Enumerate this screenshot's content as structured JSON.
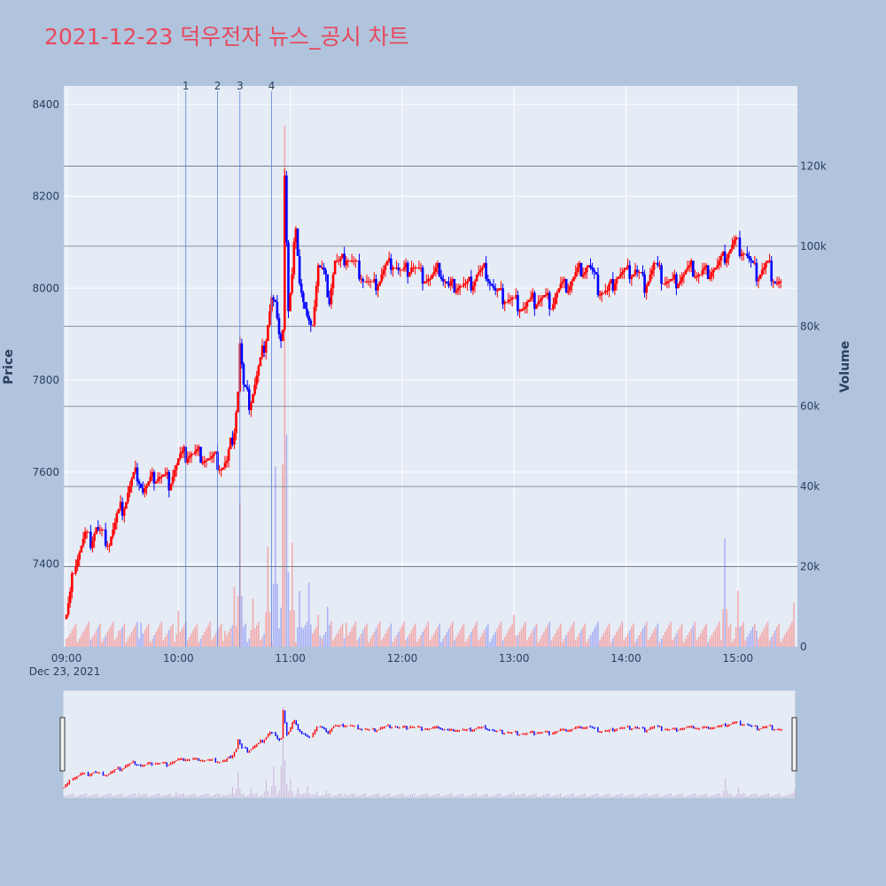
{
  "title": "2021-12-23 덕우전자 뉴스_공시 차트",
  "colors": {
    "up": "#ff0000",
    "down": "#0000ff",
    "plot_bg": "#e5ecf6",
    "page_bg": "#b0c4de",
    "title": "#e8495c"
  },
  "chart_data": {
    "type": "candlestick",
    "xlabel": "",
    "ylabel": "Price",
    "y2label": "Volume",
    "x_start": "09:00",
    "x_end": "15:30",
    "date_label": "Dec 23, 2021",
    "x_ticks": [
      "09:00",
      "10:00",
      "11:00",
      "12:00",
      "13:00",
      "14:00",
      "15:00"
    ],
    "ylim": [
      7220,
      8440
    ],
    "y_ticks": [
      7400,
      7600,
      7800,
      8000,
      8200,
      8400
    ],
    "y2lim": [
      0,
      140000
    ],
    "y2_ticks": [
      0,
      20000,
      40000,
      60000,
      80000,
      100000,
      120000
    ],
    "y2_tick_labels": [
      "0",
      "20k",
      "40k",
      "60k",
      "80k",
      "100k",
      "120k"
    ],
    "annotations": [
      {
        "label": "1",
        "time": "10:04"
      },
      {
        "label": "2",
        "time": "10:21"
      },
      {
        "label": "3",
        "time": "10:33"
      },
      {
        "label": "4",
        "time": "10:50"
      }
    ],
    "price_path": [
      [
        "09:00",
        7290
      ],
      [
        "09:02",
        7330
      ],
      [
        "09:04",
        7400
      ],
      [
        "09:07",
        7430
      ],
      [
        "09:10",
        7460
      ],
      [
        "09:13",
        7450
      ],
      [
        "09:16",
        7480
      ],
      [
        "09:20",
        7460
      ],
      [
        "09:23",
        7450
      ],
      [
        "09:27",
        7500
      ],
      [
        "09:31",
        7530
      ],
      [
        "09:35",
        7580
      ],
      [
        "09:38",
        7600
      ],
      [
        "09:41",
        7560
      ],
      [
        "09:44",
        7570
      ],
      [
        "09:47",
        7590
      ],
      [
        "09:51",
        7590
      ],
      [
        "09:55",
        7580
      ],
      [
        "09:58",
        7610
      ],
      [
        "10:01",
        7630
      ],
      [
        "10:05",
        7640
      ],
      [
        "10:10",
        7640
      ],
      [
        "10:15",
        7630
      ],
      [
        "10:20",
        7625
      ],
      [
        "10:23",
        7610
      ],
      [
        "10:26",
        7620
      ],
      [
        "10:28",
        7660
      ],
      [
        "10:30",
        7700
      ],
      [
        "10:32",
        7780
      ],
      [
        "10:33",
        7880
      ],
      [
        "10:35",
        7780
      ],
      [
        "10:38",
        7750
      ],
      [
        "10:41",
        7790
      ],
      [
        "10:44",
        7840
      ],
      [
        "10:47",
        7900
      ],
      [
        "10:50",
        7980
      ],
      [
        "10:52",
        7960
      ],
      [
        "10:54",
        7880
      ],
      [
        "10:56",
        7920
      ],
      [
        "10:57",
        8250
      ],
      [
        "10:58",
        8100
      ],
      [
        "10:59",
        7950
      ],
      [
        "11:01",
        8020
      ],
      [
        "11:03",
        8150
      ],
      [
        "11:05",
        8020
      ],
      [
        "11:07",
        7970
      ],
      [
        "11:09",
        7930
      ],
      [
        "11:11",
        7900
      ],
      [
        "11:13",
        7970
      ],
      [
        "11:15",
        8050
      ],
      [
        "11:18",
        8030
      ],
      [
        "11:21",
        7980
      ],
      [
        "11:24",
        8060
      ],
      [
        "11:27",
        8050
      ],
      [
        "11:30",
        8070
      ],
      [
        "11:35",
        8050
      ],
      [
        "11:40",
        8020
      ],
      [
        "11:45",
        8000
      ],
      [
        "11:50",
        8040
      ],
      [
        "11:55",
        8060
      ],
      [
        "12:00",
        8030
      ],
      [
        "12:05",
        8050
      ],
      [
        "12:10",
        8030
      ],
      [
        "12:15",
        8020
      ],
      [
        "12:20",
        8040
      ],
      [
        "12:25",
        8000
      ],
      [
        "12:30",
        8010
      ],
      [
        "12:35",
        8000
      ],
      [
        "12:40",
        8030
      ],
      [
        "12:45",
        8040
      ],
      [
        "12:50",
        7990
      ],
      [
        "12:55",
        7980
      ],
      [
        "13:00",
        7970
      ],
      [
        "13:05",
        7960
      ],
      [
        "13:10",
        7970
      ],
      [
        "13:15",
        7980
      ],
      [
        "13:20",
        7970
      ],
      [
        "13:25",
        8000
      ],
      [
        "13:30",
        8010
      ],
      [
        "13:35",
        8040
      ],
      [
        "13:40",
        8050
      ],
      [
        "13:45",
        8000
      ],
      [
        "13:50",
        7990
      ],
      [
        "13:55",
        8030
      ],
      [
        "14:00",
        8030
      ],
      [
        "14:05",
        8040
      ],
      [
        "14:10",
        8010
      ],
      [
        "14:15",
        8050
      ],
      [
        "14:20",
        8020
      ],
      [
        "14:25",
        8010
      ],
      [
        "14:30",
        8030
      ],
      [
        "14:35",
        8040
      ],
      [
        "14:40",
        8030
      ],
      [
        "14:45",
        8040
      ],
      [
        "14:50",
        8050
      ],
      [
        "14:55",
        8080
      ],
      [
        "14:58",
        8100
      ],
      [
        "15:01",
        8090
      ],
      [
        "15:04",
        8080
      ],
      [
        "15:07",
        8050
      ],
      [
        "15:10",
        8030
      ],
      [
        "15:13",
        8040
      ],
      [
        "15:16",
        8050
      ],
      [
        "15:20",
        8020
      ],
      [
        "15:23",
        8010
      ]
    ],
    "volume_peaks": [
      [
        "09:00",
        2000
      ],
      [
        "09:12",
        5000
      ],
      [
        "09:28",
        4000
      ],
      [
        "09:40",
        6000
      ],
      [
        "10:00",
        9000
      ],
      [
        "10:25",
        4000
      ],
      [
        "10:30",
        15000
      ],
      [
        "10:33",
        36000
      ],
      [
        "10:40",
        12000
      ],
      [
        "10:48",
        25000
      ],
      [
        "10:52",
        45000
      ],
      [
        "10:56",
        28000
      ],
      [
        "10:57",
        130000
      ],
      [
        "10:58",
        53000
      ],
      [
        "11:01",
        26000
      ],
      [
        "11:05",
        14000
      ],
      [
        "11:10",
        16000
      ],
      [
        "11:15",
        8000
      ],
      [
        "11:20",
        10000
      ],
      [
        "11:30",
        6000
      ],
      [
        "11:40",
        4000
      ],
      [
        "12:00",
        3000
      ],
      [
        "12:20",
        3000
      ],
      [
        "12:40",
        2000
      ],
      [
        "13:00",
        8000
      ],
      [
        "13:10",
        3000
      ],
      [
        "13:30",
        2500
      ],
      [
        "13:50",
        4000
      ],
      [
        "14:10",
        2500
      ],
      [
        "14:30",
        3000
      ],
      [
        "14:50",
        4000
      ],
      [
        "14:53",
        27000
      ],
      [
        "15:00",
        14000
      ],
      [
        "15:10",
        4000
      ],
      [
        "15:30",
        11000
      ]
    ]
  }
}
